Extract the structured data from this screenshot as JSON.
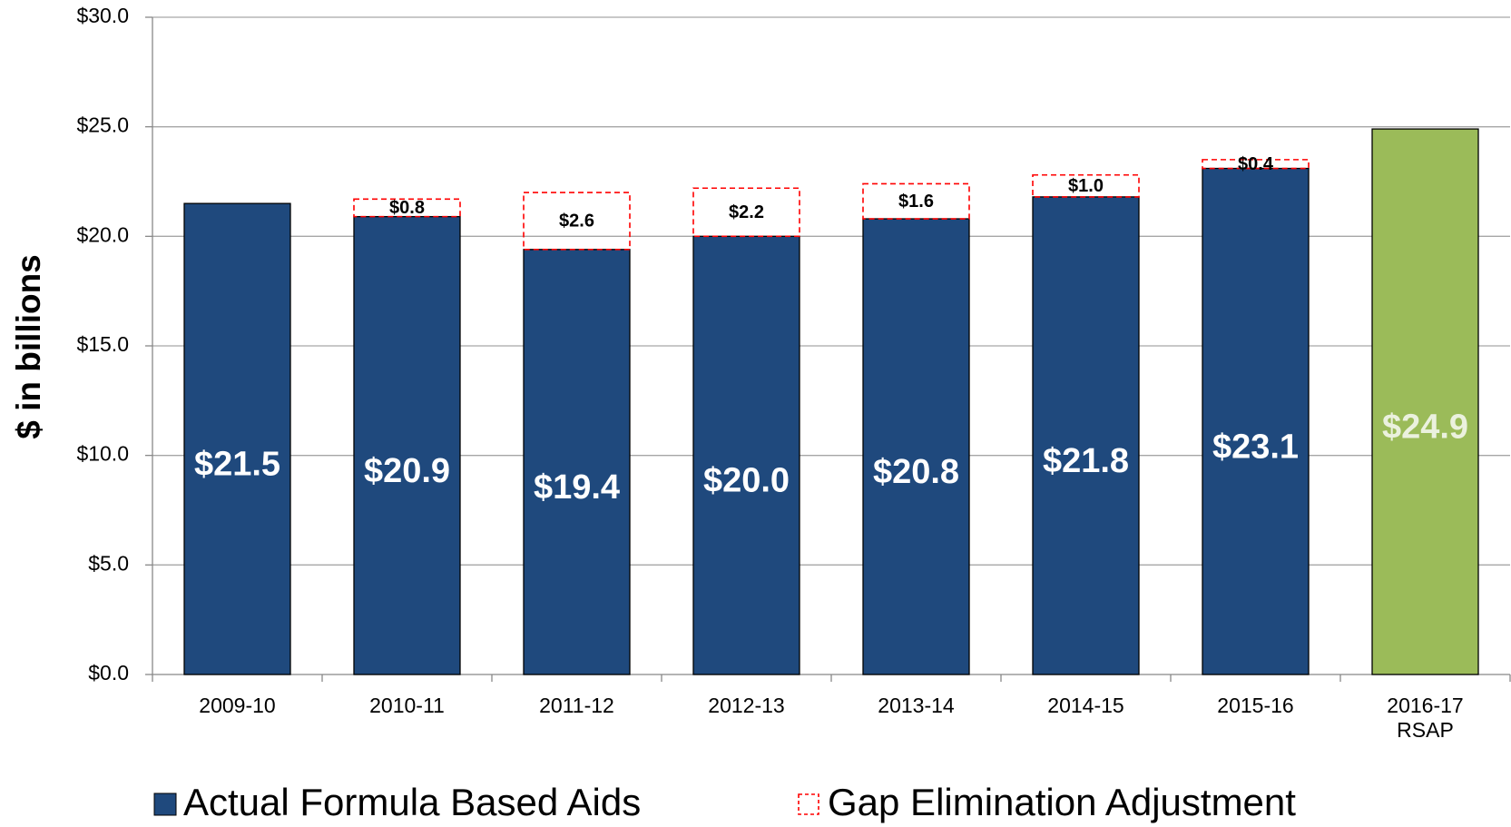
{
  "chart_data": {
    "type": "stacked_bar",
    "y_axis_label": "$ in billions",
    "categories": [
      "2009-10",
      "2010-11",
      "2011-12",
      "2012-13",
      "2013-14",
      "2014-15",
      "2015-16",
      "2016-17 RSAP"
    ],
    "series": [
      {
        "name": "Actual Formula Based Aids",
        "color": "#1f497d",
        "colors": [
          "#1f497d",
          "#1f497d",
          "#1f497d",
          "#1f497d",
          "#1f497d",
          "#1f497d",
          "#1f497d",
          "#9bbb59"
        ],
        "values": [
          21.5,
          20.9,
          19.4,
          20.0,
          20.8,
          21.8,
          23.1,
          24.9
        ],
        "value_labels": [
          "$21.5",
          "$20.9",
          "$19.4",
          "$20.0",
          "$20.8",
          "$21.8",
          "$23.1",
          "$24.9"
        ]
      },
      {
        "name": "Gap Elimination Adjustment",
        "color": "#ff0000",
        "style": "dashed-outline",
        "values": [
          null,
          0.8,
          2.6,
          2.2,
          1.6,
          1.0,
          0.4,
          null
        ],
        "value_labels": [
          null,
          "$0.8",
          "$2.6",
          "$2.2",
          "$1.6",
          "$1.0",
          "$0.4",
          null
        ]
      }
    ],
    "ylim": [
      0,
      30
    ],
    "yticks": [
      {
        "value": 0,
        "label": "$0.0"
      },
      {
        "value": 5,
        "label": "$5.0"
      },
      {
        "value": 10,
        "label": "$10.0"
      },
      {
        "value": 15,
        "label": "$15.0"
      },
      {
        "value": 20,
        "label": "$20.0"
      },
      {
        "value": 25,
        "label": "$25.0"
      },
      {
        "value": 30,
        "label": "$30.0"
      }
    ],
    "grid": true,
    "legend": "bottom"
  }
}
